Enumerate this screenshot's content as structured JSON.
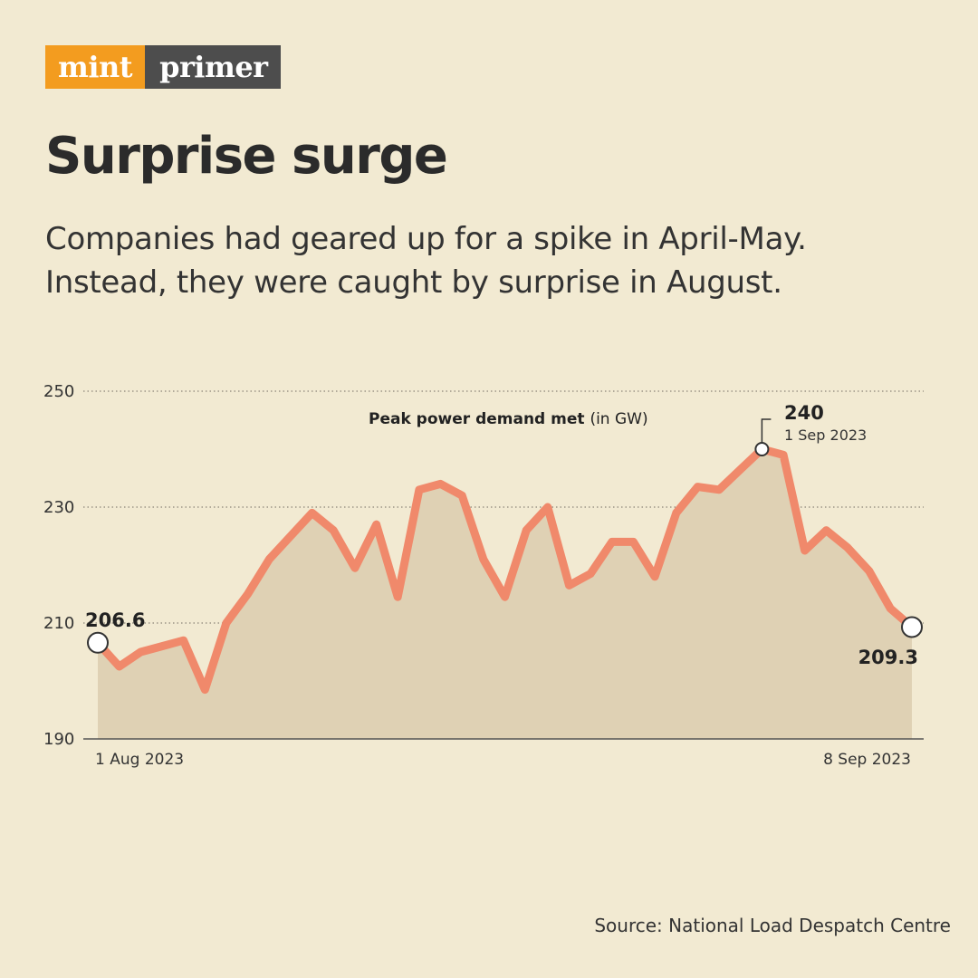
{
  "brand": {
    "left": "mint",
    "right": "primer",
    "left_color": "#f39c1f",
    "right_color": "#4d4d4d"
  },
  "title": "Surprise surge",
  "subtitle": "Companies had geared up for a spike in April-May. Instead, they were caught by surprise in August.",
  "source": "Source: National Load Despatch Centre",
  "chart_data": {
    "type": "area",
    "title_bold": "Peak power demand met",
    "title_unit": "(in GW)",
    "ylim": [
      190,
      250
    ],
    "yticks": [
      190,
      210,
      230,
      250
    ],
    "x_start_label": "1 Aug 2023",
    "x_end_label": "8 Sep 2023",
    "line_color": "#f0896b",
    "fill_color": "#dfd1b4",
    "values": [
      206.6,
      202.5,
      205,
      206,
      207,
      198.5,
      210,
      215,
      221,
      225,
      229,
      226,
      219.5,
      227,
      214.5,
      233,
      234,
      232,
      221,
      214.5,
      226,
      230,
      216.5,
      218.5,
      224,
      224,
      218,
      229,
      233.5,
      233,
      236.5,
      240,
      239,
      222.5,
      226,
      223,
      219,
      212.5,
      209.3
    ],
    "annotations": [
      {
        "value": "206.6",
        "label": ""
      },
      {
        "value": "240",
        "label": "1 Sep 2023"
      },
      {
        "value": "209.3",
        "label": ""
      }
    ]
  }
}
